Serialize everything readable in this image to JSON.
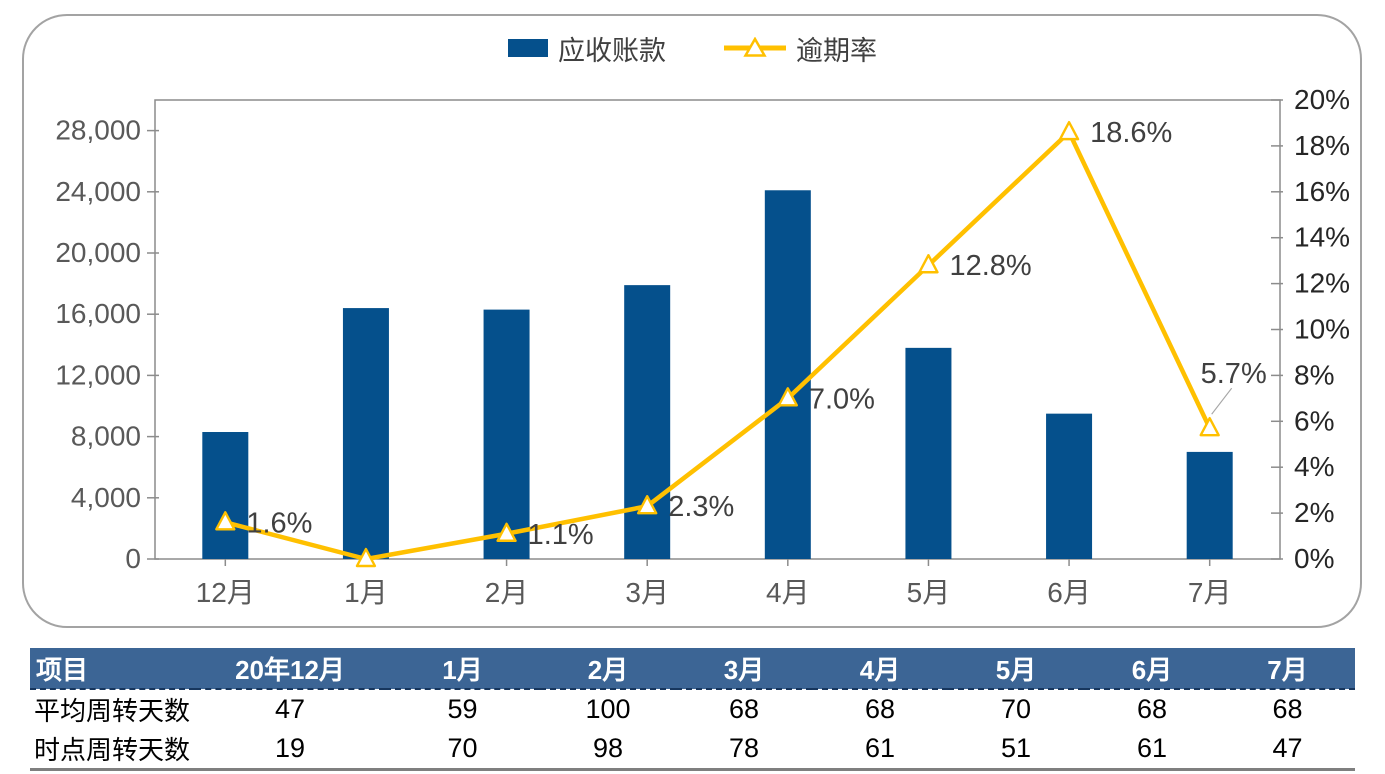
{
  "legend": {
    "bar_label": "应收账款",
    "line_label": "逾期率"
  },
  "colors": {
    "bar": "#05508C",
    "line": "#FFC000",
    "table_header_bg": "#3C6595",
    "axis_text": "#595959",
    "right_axis_text": "#262626",
    "data_label": "#404040",
    "frame": "#8C8C8C",
    "leader": "#A6A6A6"
  },
  "chart_data": {
    "type": "combo-bar-line",
    "title": "",
    "categories": [
      "12月",
      "1月",
      "2月",
      "3月",
      "4月",
      "5月",
      "6月",
      "7月"
    ],
    "series": [
      {
        "name": "应收账款",
        "type": "bar",
        "axis": "left",
        "values": [
          8300,
          16400,
          16300,
          17900,
          24100,
          13800,
          9500,
          7000
        ]
      },
      {
        "name": "逾期率",
        "type": "line",
        "axis": "right",
        "values": [
          1.6,
          0.0,
          1.1,
          2.3,
          7.0,
          12.8,
          18.6,
          5.7
        ],
        "point_labels": [
          "1.6%",
          "",
          "1.1%",
          "2.3%",
          "7.0%",
          "12.8%",
          "18.6%",
          "5.7%"
        ]
      }
    ],
    "left_axis": {
      "min": 0,
      "max": 30000,
      "tick_step": 4000,
      "tick_labels": [
        "0",
        "4,000",
        "8,000",
        "12,000",
        "16,000",
        "20,000",
        "24,000",
        "28,000"
      ]
    },
    "right_axis": {
      "min": 0,
      "max": 20,
      "tick_step": 2,
      "tick_labels": [
        "0%",
        "2%",
        "4%",
        "6%",
        "8%",
        "10%",
        "12%",
        "14%",
        "16%",
        "18%",
        "20%"
      ]
    },
    "legend_position": "top",
    "grid": false
  },
  "table": {
    "header": [
      "项目",
      "20年12月",
      "1月",
      "2月",
      "3月",
      "4月",
      "5月",
      "6月",
      "7月"
    ],
    "rows": [
      {
        "label": "平均周转天数",
        "values": [
          "47",
          "59",
          "100",
          "68",
          "68",
          "70",
          "68",
          "68"
        ]
      },
      {
        "label": "时点周转天数",
        "values": [
          "19",
          "70",
          "98",
          "78",
          "61",
          "51",
          "61",
          "47"
        ]
      }
    ]
  }
}
